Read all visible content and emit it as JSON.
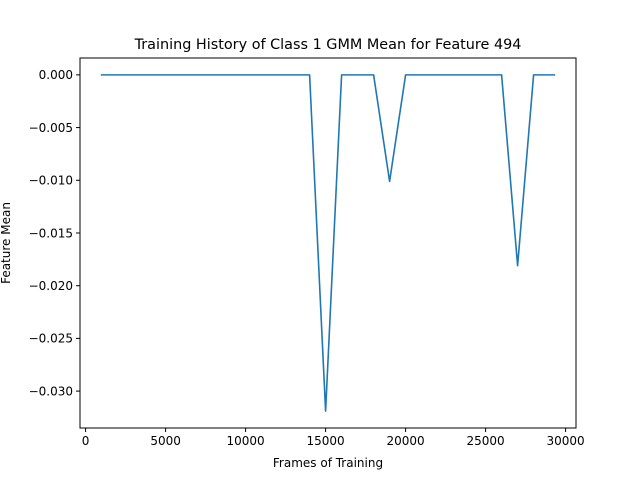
{
  "chart_data": {
    "type": "line",
    "title": "Training History of Class 1 GMM Mean for Feature 494",
    "xlabel": "Frames of Training",
    "ylabel": "Feature Mean",
    "xlim": [
      -350,
      30650
    ],
    "ylim": [
      -0.0335,
      0.0016
    ],
    "xticks": [
      0,
      5000,
      10000,
      15000,
      20000,
      25000,
      30000
    ],
    "xtick_labels": [
      "0",
      "5000",
      "10000",
      "15000",
      "20000",
      "25000",
      "30000"
    ],
    "yticks": [
      0.0,
      -0.005,
      -0.01,
      -0.015,
      -0.02,
      -0.025,
      -0.03
    ],
    "ytick_labels": [
      "0.000",
      "−0.005",
      "−0.010",
      "−0.015",
      "−0.020",
      "−0.025",
      "−0.030"
    ],
    "grid": false,
    "series": [
      {
        "color": "#1f77b4",
        "x": [
          1000,
          14000,
          15000,
          16000,
          18000,
          19000,
          20000,
          26000,
          27000,
          28000,
          29300
        ],
        "y": [
          0.0,
          0.0,
          -0.0319,
          0.0,
          0.0,
          -0.0101,
          0.0,
          0.0,
          -0.0181,
          0.0,
          0.0
        ]
      }
    ]
  }
}
